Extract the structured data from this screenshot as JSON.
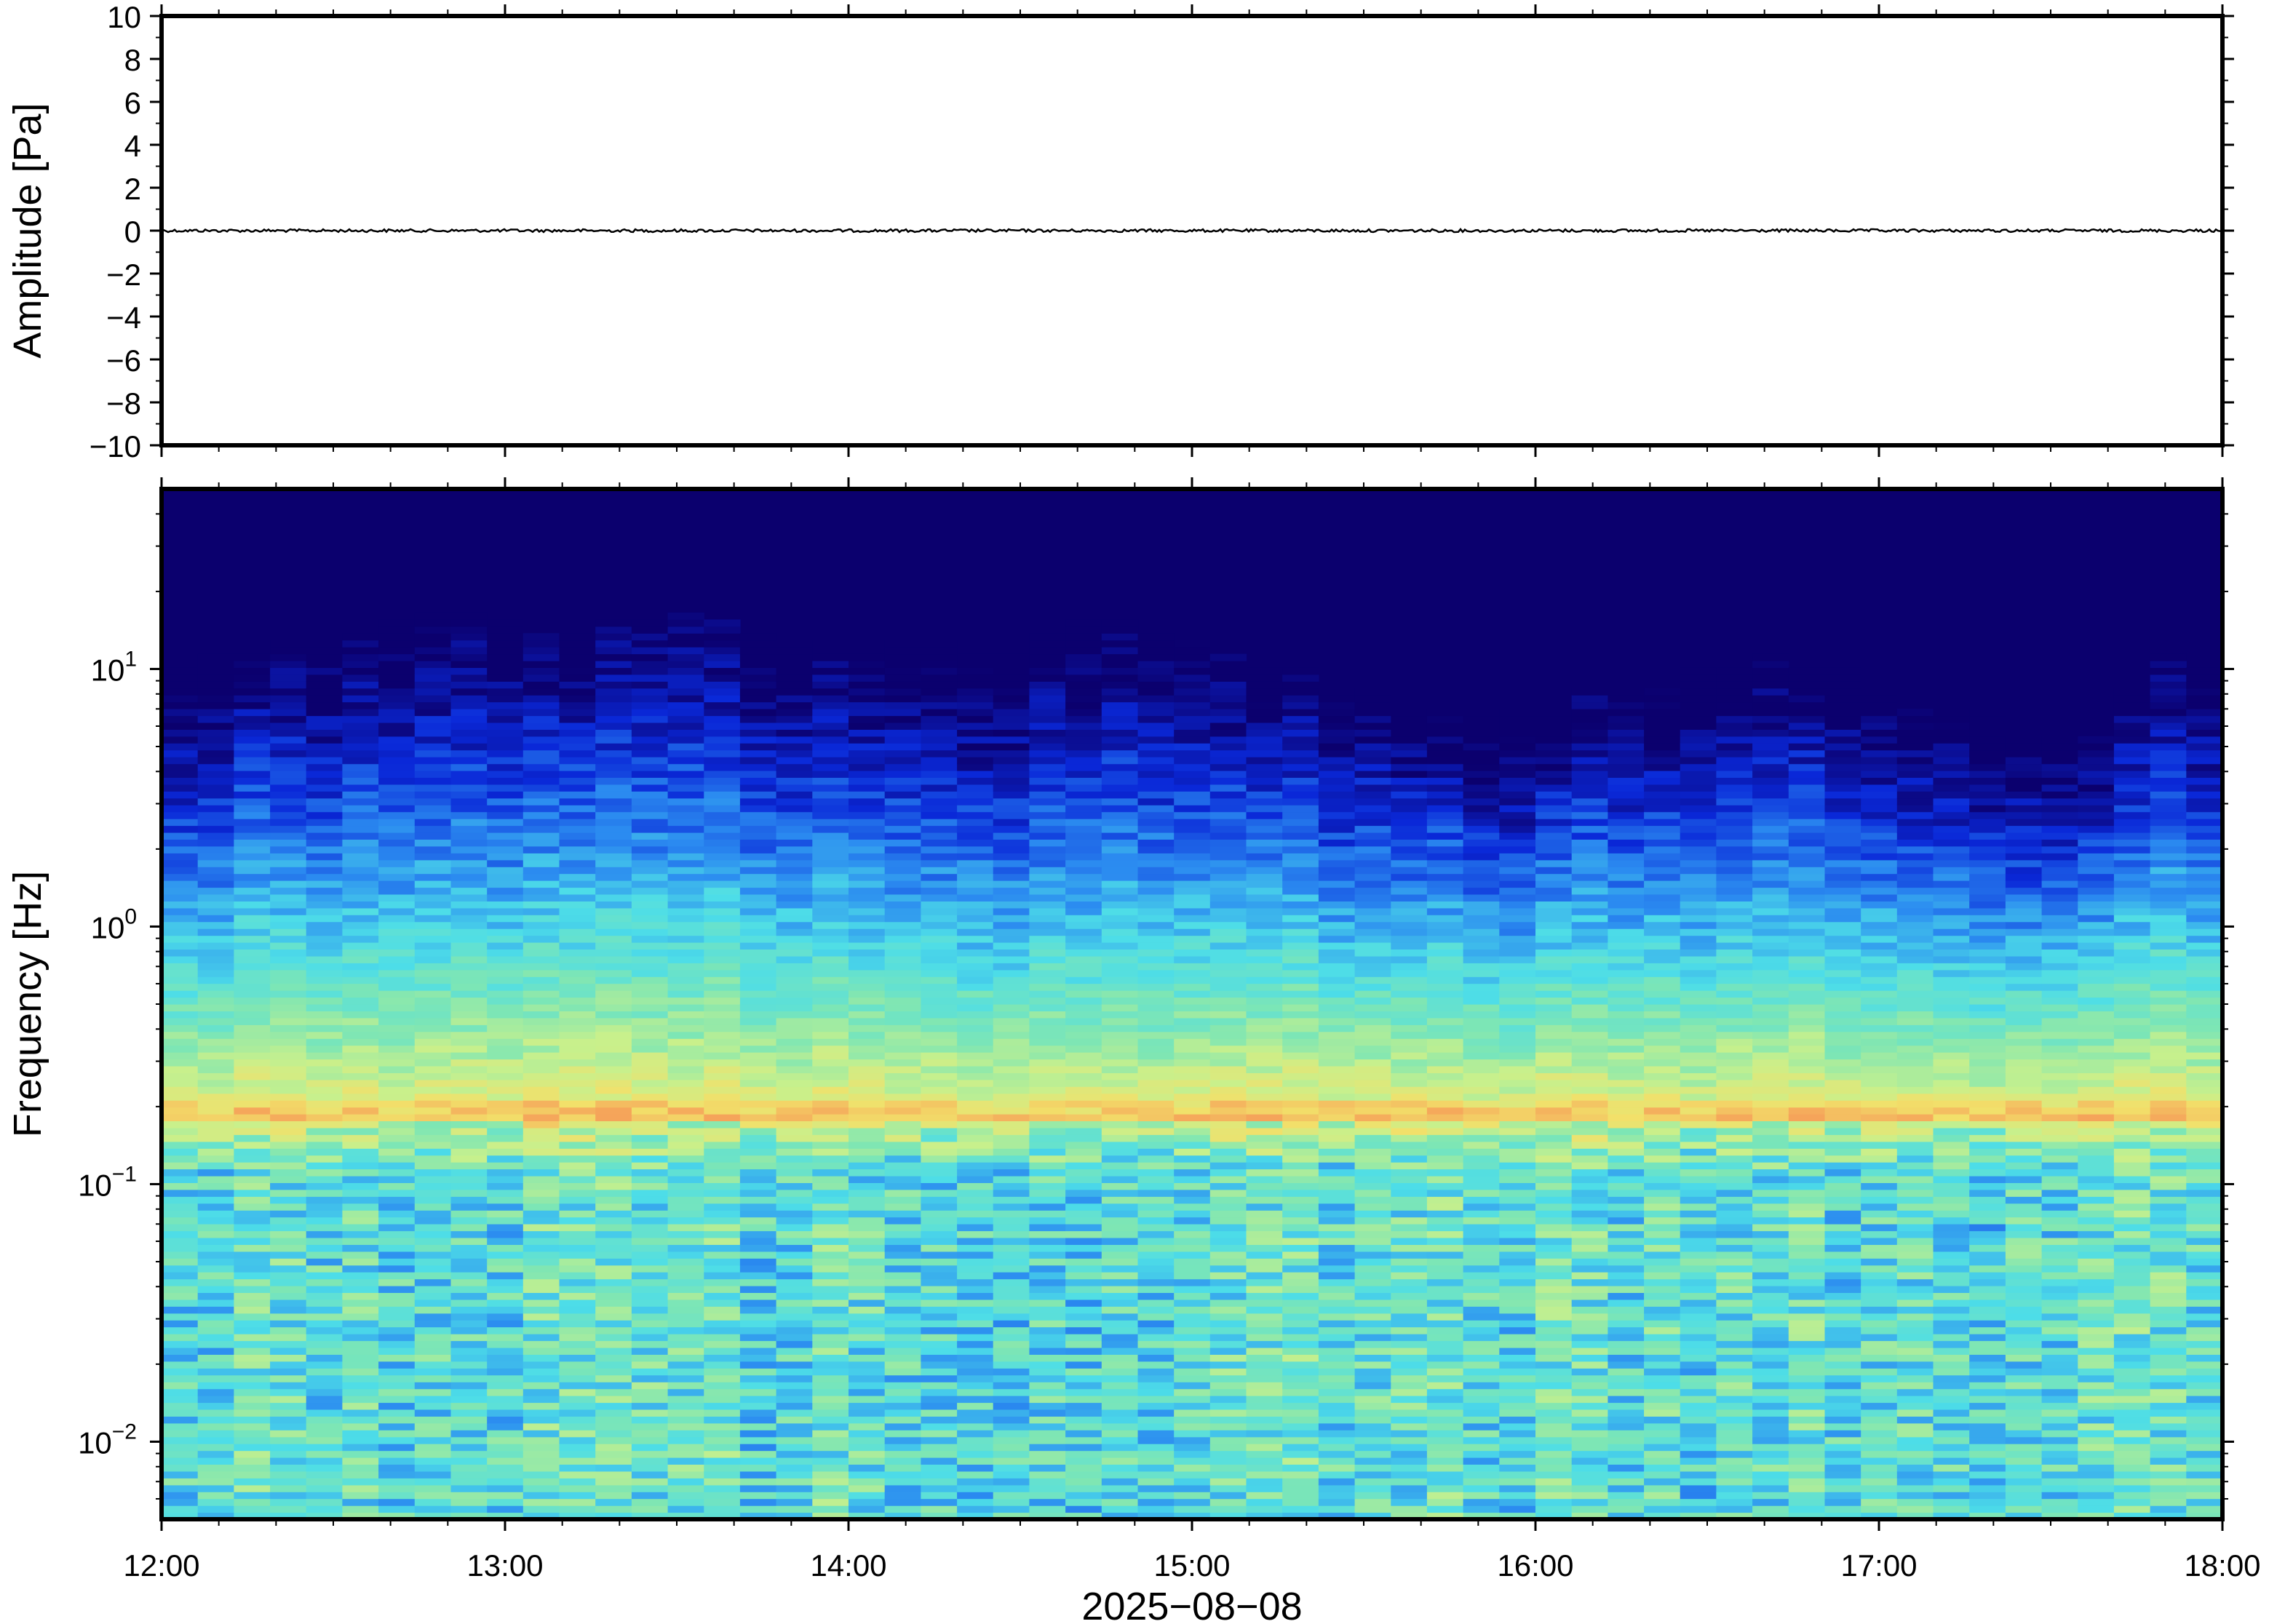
{
  "chart_data": [
    {
      "type": "line",
      "ylabel": "Amplitude [Pa]",
      "ylim": [
        -10,
        10
      ],
      "y_ticks": [
        "10",
        "8",
        "6",
        "4",
        "2",
        "0",
        "−2",
        "−4",
        "−6",
        "−8",
        "−10"
      ],
      "y_tick_values": [
        10,
        8,
        6,
        4,
        2,
        0,
        -2,
        -4,
        -6,
        -8,
        -10
      ],
      "xlim": [
        "2025-08-08 12:00",
        "2025-08-08 18:00"
      ],
      "series": [
        {
          "x": [
            "2025-08-08 12:00",
            "2025-08-08 18:00"
          ],
          "y": [
            0,
            0
          ]
        }
      ],
      "grid": false
    },
    {
      "type": "heatmap",
      "ylabel": "Frequency [Hz]",
      "xlabel": "2025−08−08",
      "x_ticks": [
        "12:00",
        "13:00",
        "14:00",
        "15:00",
        "16:00",
        "17:00",
        "18:00"
      ],
      "x_tick_values": [
        "2025-08-08 12:00",
        "2025-08-08 13:00",
        "2025-08-08 14:00",
        "2025-08-08 15:00",
        "2025-08-08 16:00",
        "2025-08-08 17:00",
        "2025-08-08 18:00"
      ],
      "y_scale": "log",
      "ylim": [
        0.005,
        50
      ],
      "y_ticks": [
        {
          "base": "10",
          "exp": "1",
          "value": 10
        },
        {
          "base": "10",
          "exp": "0",
          "value": 1
        },
        {
          "base": "10",
          "exp": "−1",
          "value": 0.1
        },
        {
          "base": "10",
          "exp": "−2",
          "value": 0.01
        }
      ],
      "colormap": "jet",
      "colors": [
        "#0b006e",
        "#0a28d8",
        "#2b8bf0",
        "#4ddde8",
        "#7ee6b4",
        "#c8f08c",
        "#f2e06a",
        "#f5a45a"
      ],
      "band_peak_hz": 0.18,
      "upper_edge_hz": [
        7,
        8,
        8,
        9,
        9,
        10,
        11,
        12,
        12,
        11,
        10,
        10,
        11,
        11,
        12,
        11,
        10,
        9,
        8,
        8,
        9,
        9,
        8,
        8,
        10,
        11,
        11,
        10,
        9,
        8,
        7,
        7,
        6,
        6,
        5,
        5,
        5,
        5,
        5,
        6,
        6,
        6,
        7,
        7,
        8,
        7,
        7,
        6,
        5,
        5,
        5,
        4,
        4,
        4,
        6,
        8,
        7
      ]
    }
  ]
}
